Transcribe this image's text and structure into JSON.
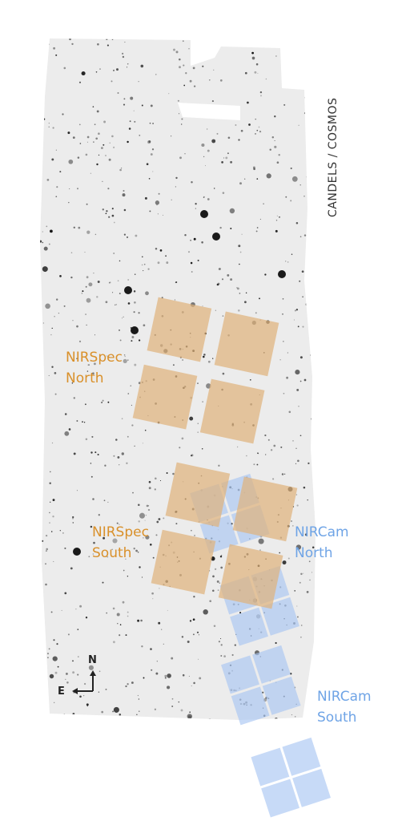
{
  "field_label": "CANDELS / COSMOS",
  "colors": {
    "nirspec": "#d9902a",
    "nircam": "#6fa4e6",
    "nirspec_fill": "#e0b27a",
    "nircam_fill": "#a9c6f2",
    "mosaic_bg": "#ececec"
  },
  "labels": {
    "nirspec_north": [
      "NIRSpec",
      "North"
    ],
    "nirspec_south": [
      "NIRSpec",
      "South"
    ],
    "nircam_north": [
      "NIRCam",
      "North"
    ],
    "nircam_south": [
      "NIRCam",
      "South"
    ]
  },
  "compass": {
    "north": "N",
    "east": "E"
  }
}
